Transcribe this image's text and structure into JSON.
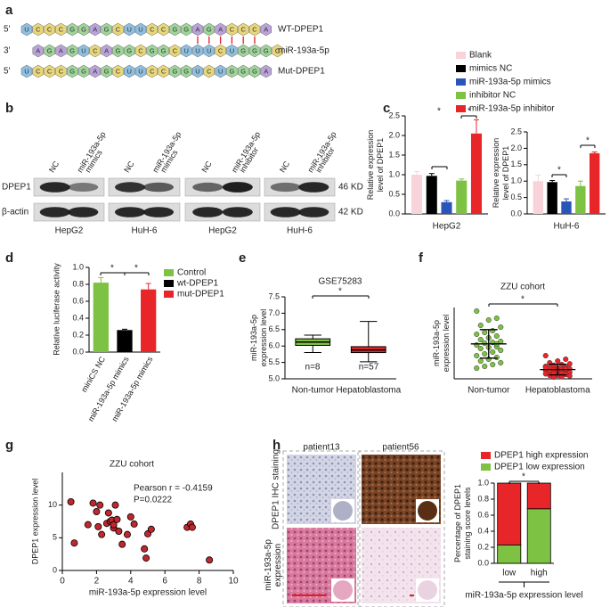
{
  "panel_labels": [
    "a",
    "b",
    "c",
    "d",
    "e",
    "f",
    "g",
    "h"
  ],
  "sequences": [
    {
      "prime": "5'",
      "bases": [
        "U",
        "C",
        "C",
        "C",
        "G",
        "G",
        "A",
        "G",
        "C",
        "U",
        "U",
        "C",
        "C",
        "G",
        "G",
        "A",
        "G",
        "A",
        "C",
        "C",
        "C",
        "A"
      ],
      "name": "WT-DPEP1"
    },
    {
      "prime": "3'",
      "bases": [
        "A",
        "G",
        "A",
        "G",
        "U",
        "C",
        "A",
        "G",
        "G",
        "C",
        "G",
        "G",
        "C",
        "U",
        "U",
        "U",
        "C",
        "U",
        "G",
        "G",
        "G",
        "C"
      ],
      "name": "miR-193a-5p"
    },
    {
      "prime": "5'",
      "bases": [
        "U",
        "C",
        "C",
        "C",
        "G",
        "G",
        "A",
        "G",
        "C",
        "U",
        "U",
        "C",
        "C",
        "G",
        "G",
        "U",
        "C",
        "U",
        "G",
        "G",
        "G",
        "A"
      ],
      "name": "Mut-DPEP1"
    }
  ],
  "blots": {
    "lanes": [
      "NC",
      [
        "miR-193a-5p",
        "mimics"
      ],
      "NC",
      [
        "miR-193a-5p",
        "mimics"
      ],
      "NC",
      [
        "miR-193a-5p",
        "inhibitor"
      ],
      "NC",
      [
        "miR-193a-5p",
        "inhibitor"
      ]
    ],
    "rows": [
      {
        "name": "DPEP1",
        "size": "46 KD"
      },
      {
        "name": "β-actin",
        "size": "42 KD"
      }
    ],
    "cell_lines": [
      "HepG2",
      "HuH-6",
      "HepG2",
      "HuH-6"
    ]
  },
  "ihc": {
    "patients": [
      "patient13",
      "patient56"
    ],
    "rows": [
      "DPEP1 IHC staining",
      [
        "miR-193a-5p",
        "expression"
      ]
    ]
  },
  "chart_data": [
    {
      "type": "bar",
      "categories": [
        "HepG2"
      ],
      "ylabel": [
        "Relative expression",
        "level of DPEP1"
      ],
      "ylim": [
        0,
        2.5
      ],
      "yticks": [
        {
          "value": 0,
          "label": "0.0"
        },
        0.5,
        {
          "value": 1,
          "label": "1.0"
        },
        1.5,
        {
          "value": 2,
          "label": "2.0"
        },
        2.5
      ],
      "series": [
        {
          "name": "Blank",
          "color": "#f8d3da",
          "values": [
            1.0
          ],
          "errors": [
            0.08
          ]
        },
        {
          "name": "mimics NC",
          "color": "#000000",
          "values": [
            0.97
          ],
          "errors": [
            0.06
          ]
        },
        {
          "name": "miR-193a-5p mimics",
          "color": "#2a55b8",
          "values": [
            0.3
          ],
          "errors": [
            0.04
          ]
        },
        {
          "name": "inhibitor NC",
          "color": "#7dc242",
          "values": [
            0.85
          ],
          "errors": [
            0.04
          ]
        },
        {
          "name": "miR-193a-5p inhibitor",
          "color": "#e8262a",
          "values": [
            2.05
          ],
          "errors": [
            0.35
          ]
        }
      ],
      "annotations": [
        "*",
        "*"
      ]
    },
    {
      "type": "bar",
      "categories": [
        "HuH-6"
      ],
      "ylabel": [
        "Relative expression",
        "level of DPEP1"
      ],
      "ylim": [
        0,
        2.5
      ],
      "yticks": [
        {
          "value": 0,
          "label": "0.0"
        },
        0.5,
        {
          "value": 1,
          "label": "1.0"
        },
        1.5,
        {
          "value": 2,
          "label": "2.0"
        },
        2.5
      ],
      "series": [
        {
          "color": "#f8d3da",
          "values": [
            1.0
          ],
          "errors": [
            0.18
          ]
        },
        {
          "color": "#000000",
          "values": [
            0.97
          ],
          "errors": [
            0.05
          ]
        },
        {
          "color": "#2a55b8",
          "values": [
            0.38
          ],
          "errors": [
            0.08
          ]
        },
        {
          "color": "#7dc242",
          "values": [
            0.85
          ],
          "errors": [
            0.15
          ]
        },
        {
          "color": "#e8262a",
          "values": [
            1.85
          ],
          "errors": [
            0.04
          ]
        }
      ],
      "annotations": [
        "*",
        "*"
      ]
    },
    {
      "type": "bar",
      "categories": [
        "miniCS NC",
        "miR-193a-5p mimics",
        "miR-193a-5p mimics"
      ],
      "ylabel": "Relative luciferase activity",
      "ylim": [
        0,
        1
      ],
      "yticks": [
        {
          "value": 0,
          "label": "0.0"
        },
        0.2,
        0.4,
        0.6,
        0.8,
        {
          "value": 1,
          "label": "1.0"
        }
      ],
      "series": [
        {
          "name": "Control",
          "color": "#7dc242",
          "values": [
            0.82,
            null,
            null
          ],
          "errors": [
            0.06,
            null,
            null
          ]
        },
        {
          "name": "wt-DPEP1",
          "color": "#000000",
          "values": [
            null,
            0.26,
            null
          ],
          "errors": [
            null,
            0.01,
            null
          ]
        },
        {
          "name": "mut-DPEP1",
          "color": "#e8262a",
          "values": [
            null,
            null,
            0.74
          ],
          "errors": [
            null,
            null,
            0.07
          ]
        }
      ],
      "annotations": [
        "*",
        "*"
      ]
    },
    {
      "type": "box",
      "title": "GSE75283",
      "categories": [
        "Non-tumor",
        "Hepatoblastoma"
      ],
      "ylabel": [
        "miR-193a-5p",
        "expression level"
      ],
      "ylim": [
        5,
        7.5
      ],
      "yticks": [
        {
          "value": 5,
          "label": "5.0"
        },
        5.5,
        {
          "value": 6,
          "label": "6.0"
        },
        6.5,
        {
          "value": 7,
          "label": "7.0"
        },
        7.5
      ],
      "boxes": [
        {
          "min": 5.8,
          "q1": 6.02,
          "median": 6.12,
          "q3": 6.22,
          "max": 6.33,
          "color": "#7dc242"
        },
        {
          "min": 5.52,
          "q1": 5.8,
          "median": 5.88,
          "q3": 5.98,
          "max": 6.75,
          "color": "#e8262a"
        }
      ],
      "annotations": [
        "n=8",
        "n=57",
        "*"
      ]
    },
    {
      "type": "strip",
      "title": "ZZU cohort",
      "categories": [
        "Non-tumor",
        "Hepatoblastoma"
      ],
      "ylabel": [
        "miR-193a-5p",
        "expression level"
      ],
      "ylim": [
        0,
        20
      ],
      "series": [
        {
          "color": "#7dc242",
          "values": [
            19,
            17,
            16.5,
            15,
            14.5,
            13.5,
            13,
            12.5,
            12,
            11.5,
            11,
            10.5,
            10.2,
            10,
            9.5,
            9,
            8.8,
            8.5,
            8,
            7.5,
            7,
            6.5,
            6,
            5.5,
            5,
            4.5,
            4,
            3.5,
            3,
            9.8
          ],
          "mean": 9.8,
          "sd": 4.0
        },
        {
          "color": "#e8262a",
          "values": [
            6.5,
            5.5,
            5,
            4.5,
            4.2,
            4,
            3.8,
            3.5,
            3.3,
            3,
            3,
            2.8,
            2.6,
            2.5,
            2.4,
            2.2,
            2,
            2,
            1.8,
            1.6,
            1.5,
            1.4,
            1.2,
            1,
            1,
            0.8,
            0.6,
            0.5,
            3.2,
            2.7
          ],
          "mean": 2.6,
          "sd": 1.5
        }
      ],
      "annotations": [
        "*"
      ]
    },
    {
      "type": "scatter",
      "title": "ZZU cohort",
      "xlabel": "miR-193a-5p expression level",
      "ylabel": "DPEP1 expression level",
      "xlim": [
        0,
        10
      ],
      "xticks": [
        0,
        2,
        4,
        6,
        8,
        10
      ],
      "ylim": [
        0,
        15
      ],
      "yticks": [
        0,
        5,
        10
      ],
      "color": "#c1272d",
      "x": [
        0.5,
        0.7,
        1.5,
        1.8,
        2,
        2.1,
        2.2,
        2.3,
        2.6,
        2.7,
        2.8,
        2.9,
        3,
        3,
        3.1,
        3.2,
        3.3,
        3.5,
        3.8,
        4,
        4.2,
        4.8,
        4.9,
        5,
        5.2,
        7.3,
        7.5,
        7.6,
        8.6
      ],
      "values": [
        10.5,
        4.2,
        7,
        10.3,
        9,
        6.7,
        10,
        5.5,
        7.2,
        8.8,
        7.5,
        7.7,
        6.5,
        7,
        10,
        7.8,
        6,
        4,
        5.5,
        8.2,
        7.1,
        3.3,
        1.9,
        5.6,
        6.3,
        6.6,
        7.1,
        6.6,
        1.6
      ],
      "annotations": [
        "Pearson r = -0.4159",
        "P=0.0222"
      ]
    },
    {
      "type": "stacked_bar",
      "categories": [
        "low",
        "high"
      ],
      "xlabel": "miR-193a-5p expression level",
      "ylabel": [
        "Percentage of DPEP1",
        "staining score levels"
      ],
      "ylim": [
        0,
        1
      ],
      "yticks": [
        {
          "value": 0,
          "label": "0.0"
        },
        0.2,
        0.4,
        0.6,
        0.8,
        {
          "value": 1,
          "label": "1.0"
        }
      ],
      "series": [
        {
          "name": "DPEP1 high expression",
          "color": "#e8262a",
          "values": [
            0.77,
            0.32
          ]
        },
        {
          "name": "DPEP1 low expression",
          "color": "#7dc242",
          "values": [
            0.23,
            0.68
          ]
        }
      ],
      "annotations": [
        "*"
      ]
    }
  ]
}
